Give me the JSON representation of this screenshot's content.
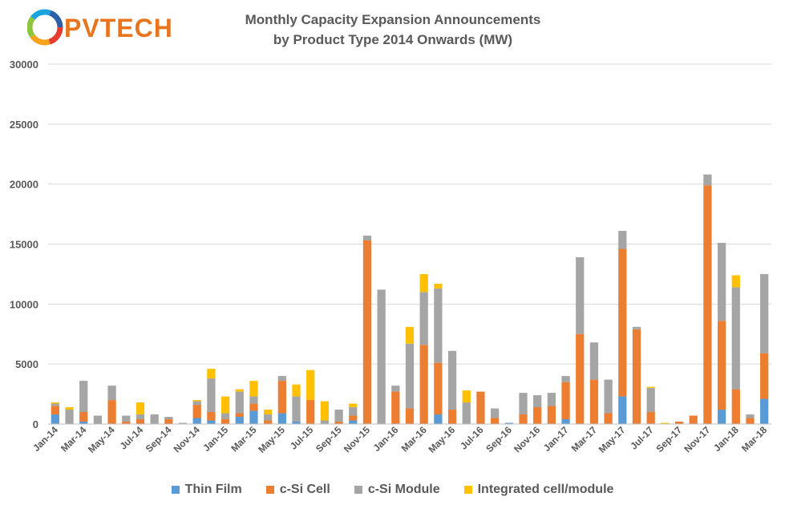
{
  "logo": {
    "text": "PVTECH",
    "ring_colors": [
      "#e63b2e",
      "#f7a21b",
      "#8cc63f",
      "#1aa3dd",
      "#2b5fa8"
    ]
  },
  "chart_data": {
    "type": "bar",
    "stacked": true,
    "title": "Monthly Capacity Expansion Announcements",
    "subtitle": "by Product Type 2014 Onwards (MW)",
    "xlabel": "",
    "ylabel": "",
    "ylim": [
      0,
      30000
    ],
    "yticks": [
      0,
      5000,
      10000,
      15000,
      20000,
      25000,
      30000
    ],
    "ytick_labels": [
      "0",
      "5000",
      "10000",
      "15000",
      "20000",
      "25000",
      "30000"
    ],
    "grid": true,
    "legend_position": "bottom",
    "categories": [
      "Jan-14",
      "Feb-14",
      "Mar-14",
      "Apr-14",
      "May-14",
      "Jun-14",
      "Jul-14",
      "Aug-14",
      "Sep-14",
      "Oct-14",
      "Nov-14",
      "Dec-14",
      "Jan-15",
      "Feb-15",
      "Mar-15",
      "Apr-15",
      "May-15",
      "Jun-15",
      "Jul-15",
      "Aug-15",
      "Sep-15",
      "Oct-15",
      "Nov-15",
      "Dec-15",
      "Jan-16",
      "Feb-16",
      "Mar-16",
      "Apr-16",
      "May-16",
      "Jun-16",
      "Jul-16",
      "Aug-16",
      "Sep-16",
      "Oct-16",
      "Nov-16",
      "Dec-16",
      "Jan-17",
      "Feb-17",
      "Mar-17",
      "Apr-17",
      "May-17",
      "Jun-17",
      "Jul-17",
      "Aug-17",
      "Sep-17",
      "Oct-17",
      "Nov-17",
      "Dec-17",
      "Jan-18",
      "Feb-18",
      "Mar-18"
    ],
    "xtick_labels": [
      "Jan-14",
      "",
      "Mar-14",
      "",
      "May-14",
      "",
      "Jul-14",
      "",
      "Sep-14",
      "",
      "Nov-14",
      "",
      "Jan-15",
      "",
      "Mar-15",
      "",
      "May-15",
      "",
      "Jul-15",
      "",
      "Sep-15",
      "",
      "Nov-15",
      "",
      "Jan-16",
      "",
      "Mar-16",
      "",
      "May-16",
      "",
      "Jul-16",
      "",
      "Sep-16",
      "",
      "Nov-16",
      "",
      "Jan-17",
      "",
      "Mar-17",
      "",
      "May-17",
      "",
      "Jul-17",
      "",
      "Sep-17",
      "",
      "Nov-17",
      "",
      "Jan-18",
      "",
      "Mar-18"
    ],
    "series": [
      {
        "name": "Thin Film",
        "color": "#5b9bd5",
        "values": [
          800,
          0,
          200,
          0,
          0,
          0,
          0,
          0,
          0,
          0,
          500,
          300,
          0,
          600,
          1100,
          0,
          900,
          200,
          0,
          0,
          0,
          300,
          0,
          0,
          0,
          0,
          0,
          800,
          0,
          0,
          0,
          0,
          100,
          0,
          0,
          0,
          400,
          0,
          0,
          0,
          2300,
          0,
          0,
          0,
          0,
          0,
          0,
          1200,
          0,
          0,
          2100
        ]
      },
      {
        "name": "c-Si Cell",
        "color": "#ed7d31",
        "values": [
          700,
          0,
          800,
          0,
          2000,
          200,
          400,
          0,
          400,
          0,
          1100,
          700,
          400,
          300,
          600,
          300,
          2700,
          0,
          2000,
          0,
          200,
          400,
          15300,
          0,
          2700,
          1300,
          6600,
          4300,
          1200,
          0,
          2700,
          500,
          0,
          800,
          1400,
          1500,
          3100,
          7500,
          3700,
          900,
          12300,
          7900,
          1000,
          0,
          200,
          700,
          19900,
          7400,
          2900,
          500,
          3800
        ]
      },
      {
        "name": "c-Si Module",
        "color": "#a5a5a5",
        "values": [
          200,
          1200,
          2600,
          700,
          1200,
          500,
          400,
          800,
          200,
          100,
          300,
          2800,
          500,
          1800,
          600,
          500,
          400,
          2100,
          0,
          300,
          1000,
          700,
          400,
          11200,
          500,
          5400,
          4400,
          6200,
          4900,
          1800,
          0,
          800,
          0,
          1800,
          1000,
          1100,
          500,
          6400,
          3100,
          2800,
          1500,
          200,
          2000,
          0,
          0,
          0,
          900,
          6500,
          8500,
          300,
          6600
        ]
      },
      {
        "name": "Integrated cell/module",
        "color": "#ffc000",
        "values": [
          100,
          200,
          0,
          0,
          0,
          0,
          1000,
          0,
          0,
          0,
          100,
          800,
          1400,
          200,
          1300,
          400,
          0,
          1000,
          2500,
          1600,
          0,
          300,
          0,
          0,
          0,
          1400,
          1500,
          400,
          0,
          1000,
          0,
          0,
          0,
          0,
          0,
          0,
          0,
          0,
          0,
          0,
          0,
          0,
          100,
          100,
          0,
          0,
          0,
          0,
          1000,
          0,
          0
        ]
      }
    ]
  }
}
